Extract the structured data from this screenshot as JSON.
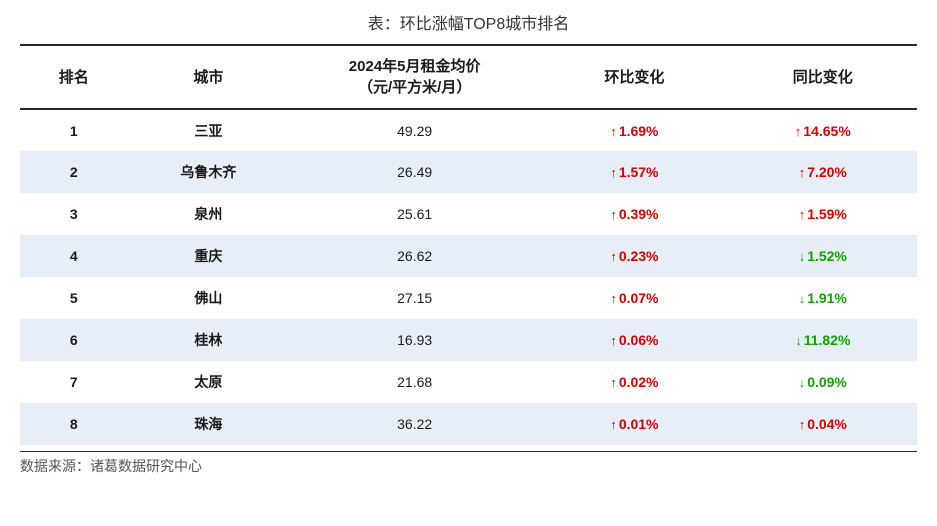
{
  "table": {
    "title": "表：环比涨幅TOP8城市排名",
    "columns": {
      "rank": "排名",
      "city": "城市",
      "price": "2024年5月租金均价\n（元/平方米/月）",
      "mom": "环比变化",
      "yoy": "同比变化"
    },
    "rows": [
      {
        "rank": "1",
        "city": "三亚",
        "price": "49.29",
        "mom": {
          "dir": "up",
          "text": "1.69%"
        },
        "yoy": {
          "dir": "up",
          "text": "14.65%"
        }
      },
      {
        "rank": "2",
        "city": "乌鲁木齐",
        "price": "26.49",
        "mom": {
          "dir": "up",
          "text": "1.57%"
        },
        "yoy": {
          "dir": "up",
          "text": "7.20%"
        }
      },
      {
        "rank": "3",
        "city": "泉州",
        "price": "25.61",
        "mom": {
          "dir": "up",
          "text": "0.39%"
        },
        "yoy": {
          "dir": "up",
          "text": "1.59%"
        }
      },
      {
        "rank": "4",
        "city": "重庆",
        "price": "26.62",
        "mom": {
          "dir": "up",
          "text": "0.23%"
        },
        "yoy": {
          "dir": "down",
          "text": "1.52%"
        }
      },
      {
        "rank": "5",
        "city": "佛山",
        "price": "27.15",
        "mom": {
          "dir": "up",
          "text": "0.07%"
        },
        "yoy": {
          "dir": "down",
          "text": "1.91%"
        }
      },
      {
        "rank": "6",
        "city": "桂林",
        "price": "16.93",
        "mom": {
          "dir": "up",
          "text": "0.06%"
        },
        "yoy": {
          "dir": "down",
          "text": "11.82%"
        }
      },
      {
        "rank": "7",
        "city": "太原",
        "price": "21.68",
        "mom": {
          "dir": "up",
          "text": "0.02%"
        },
        "yoy": {
          "dir": "down",
          "text": "0.09%"
        }
      },
      {
        "rank": "8",
        "city": "珠海",
        "price": "36.22",
        "mom": {
          "dir": "up",
          "text": "0.01%"
        },
        "yoy": {
          "dir": "up",
          "text": "0.04%"
        }
      }
    ],
    "source": "数据来源：诸葛数据研究中心",
    "style": {
      "header_border_color": "#2a2a2a",
      "alt_row_bg": "#e8eef7",
      "up_color": "#d40000",
      "down_color": "#12a000",
      "up_arrow": "↑",
      "down_arrow": "↓"
    }
  }
}
